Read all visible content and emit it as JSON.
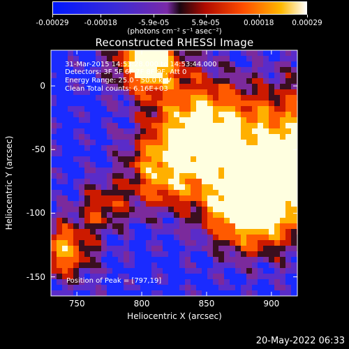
{
  "colorbar": {
    "ticks": [
      "-0.00029",
      "-0.00018",
      "-5.9e-05",
      "5.9e-05",
      "0.00018",
      "0.00029"
    ],
    "tick_values": [
      -0.00029,
      -0.00018,
      -5.9e-05,
      5.9e-05,
      0.00018,
      0.00029
    ],
    "units": "(photons cm⁻² s⁻¹ asec⁻²)",
    "range": [
      -0.00029,
      0.00029
    ]
  },
  "title": "Reconstructed RHESSI Image",
  "info": {
    "time": "31-Mar-2015 14:53:28.000 to 14:53:44.000",
    "detectors": "Detectors: 3F 5F 6F 7F 8F 9F, Att 0",
    "energy": "Energy Range: 25.0 - 50.0 keV",
    "clean": "Clean    Total counts: 6.16E+03"
  },
  "peak": "Position of Peak = [797,19]",
  "timestamp": "20-May-2022 06:33",
  "chart_data": {
    "type": "heatmap",
    "title": "Reconstructed RHESSI Image",
    "xlabel": "Heliocentric X (arcsec)",
    "ylabel": "Heliocentric Y (arcsec)",
    "xlim": [
      730,
      920
    ],
    "ylim": [
      -165,
      28
    ],
    "xticks": [
      "750",
      "800",
      "850",
      "900"
    ],
    "xtick_values": [
      750,
      800,
      850,
      900
    ],
    "yticks": [
      "0",
      "-50",
      "-100",
      "-150"
    ],
    "ytick_values": [
      0,
      -50,
      -100,
      -150
    ],
    "colormap": "blue-purple-red-yellow-white",
    "colors": [
      "#1a2bff",
      "#5a2cc9",
      "#7b2a9c",
      "#3a0f1f",
      "#cc1a00",
      "#ff5a00",
      "#ffb000",
      "#ffffe0"
    ],
    "peak_position": [
      797,
      19
    ]
  }
}
